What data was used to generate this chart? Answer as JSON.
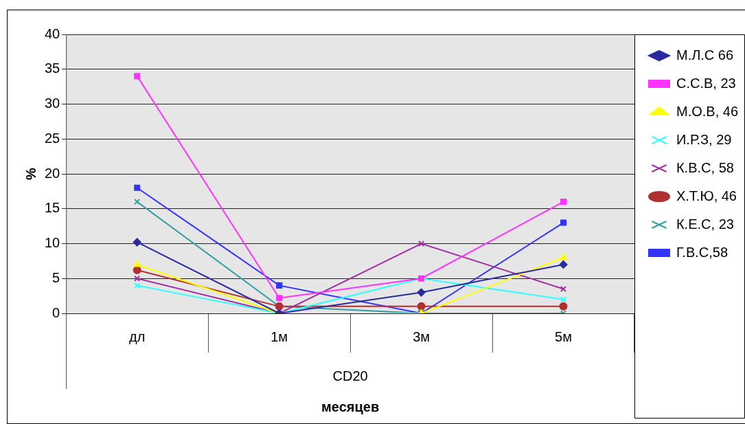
{
  "chart_data": {
    "type": "line",
    "xlabel": "месяцев",
    "ylabel": "%",
    "categories": [
      "дл",
      "1м",
      "3м",
      "5м"
    ],
    "ylim": [
      0,
      40
    ],
    "yticks": [
      0,
      5,
      10,
      15,
      20,
      25,
      30,
      35,
      40
    ],
    "grid": "y",
    "legend": "right",
    "annotations": [
      "CD20"
    ],
    "series": [
      {
        "name": "М.Л.С 66",
        "color": "#2a2aa0",
        "marker": "diamond",
        "values": [
          10.2,
          0,
          3,
          7
        ]
      },
      {
        "name": "С.С.В, 23",
        "color": "#ff33ff",
        "marker": "square",
        "values": [
          34,
          2.2,
          5,
          16
        ]
      },
      {
        "name": "М.О.В, 46",
        "color": "#ffff00",
        "marker": "triangle",
        "values": [
          7,
          0,
          0,
          8
        ]
      },
      {
        "name": "И.Р.З, 29",
        "color": "#33ffff",
        "marker": "cross",
        "values": [
          4,
          0,
          5,
          2
        ]
      },
      {
        "name": "К.В.С, 58",
        "color": "#a030a0",
        "marker": "cross",
        "values": [
          5,
          0,
          10,
          3.5
        ]
      },
      {
        "name": "Х.Т.Ю, 46",
        "color": "#b03030",
        "marker": "circle",
        "values": [
          6.2,
          1,
          1,
          1
        ]
      },
      {
        "name": "К.Е.С, 23",
        "color": "#30a0a0",
        "marker": "cross",
        "values": [
          16,
          1,
          0,
          0
        ]
      },
      {
        "name": "Г.В.С,58",
        "color": "#3333ff",
        "marker": "square",
        "values": [
          18,
          4,
          0,
          13
        ]
      }
    ]
  }
}
